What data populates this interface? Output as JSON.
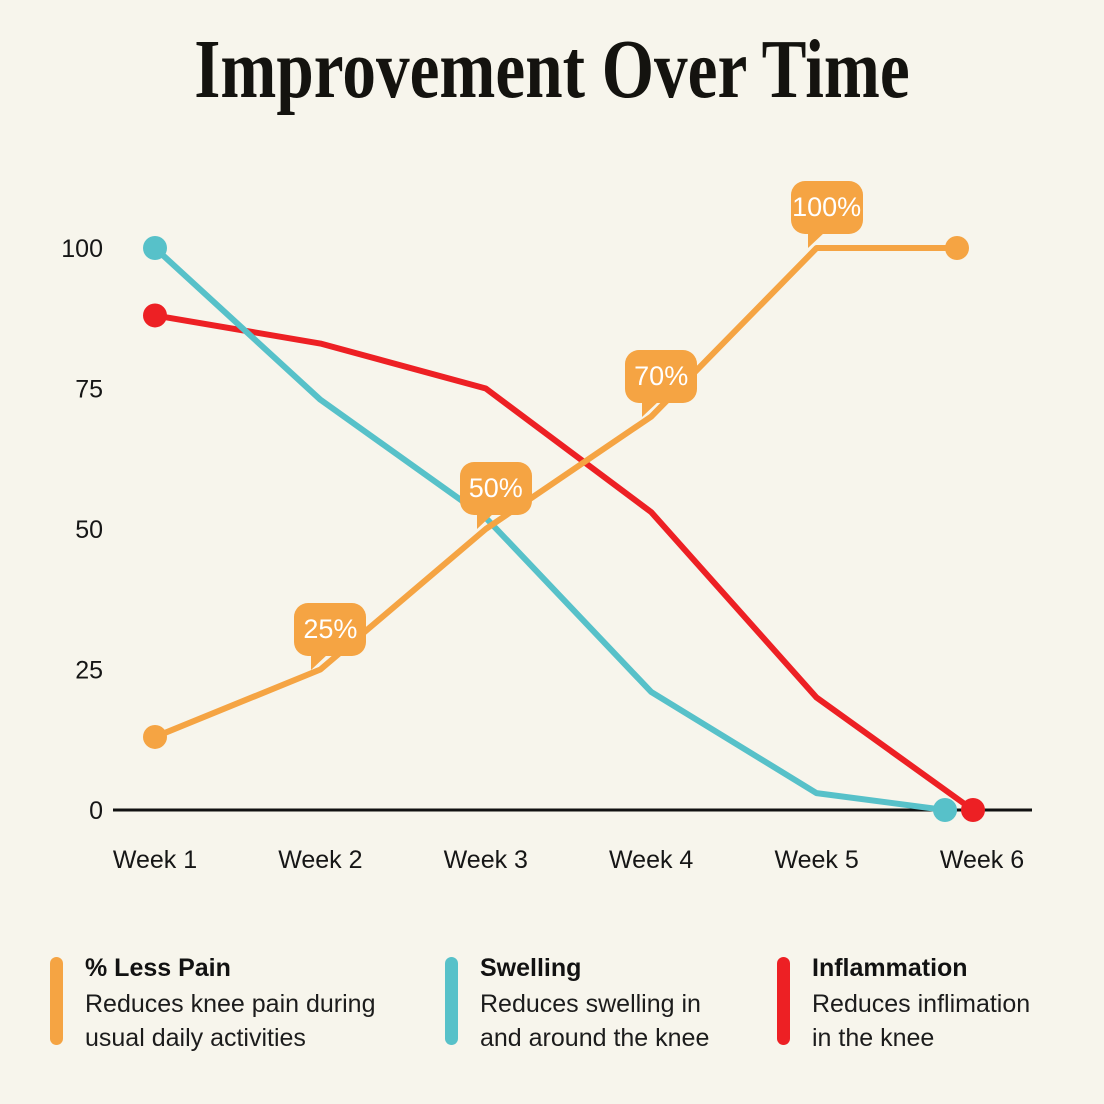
{
  "title": "Improvement Over Time",
  "colors": {
    "background": "#F7F5EC",
    "axis": "#111111",
    "tick_text": "#161616",
    "badge_text": "#FFFFFF",
    "orange": "#F5A443",
    "teal": "#57C1C9",
    "red": "#ED2024"
  },
  "chart_data": {
    "type": "line",
    "title": "Improvement Over Time",
    "categories": [
      "Week 1",
      "Week 2",
      "Week 3",
      "Week 4",
      "Week 5",
      "Week 6"
    ],
    "y_ticks": [
      100,
      75,
      50,
      25,
      0
    ],
    "ylim": [
      0,
      100
    ],
    "grid": false,
    "legend_position": "bottom",
    "series": [
      {
        "name": "% Less Pain",
        "color": "#F5A443",
        "values": [
          13,
          25,
          50,
          70,
          100,
          100
        ]
      },
      {
        "name": "Swelling",
        "color": "#57C1C9",
        "values": [
          100,
          73,
          52,
          21,
          3,
          0
        ]
      },
      {
        "name": "Inflammation",
        "color": "#ED2024",
        "values": [
          88,
          83,
          75,
          53,
          20,
          0
        ]
      }
    ],
    "data_labels": [
      {
        "series": "% Less Pain",
        "category": "Week 2",
        "label": "25%"
      },
      {
        "series": "% Less Pain",
        "category": "Week 3",
        "label": "50%"
      },
      {
        "series": "% Less Pain",
        "category": "Week 4",
        "label": "70%"
      },
      {
        "series": "% Less Pain",
        "category": "Week 5",
        "label": "100%"
      }
    ]
  },
  "legend": {
    "items": [
      {
        "heading": "% Less Pain",
        "color": "#F5A443",
        "lines": [
          "Reduces knee pain during",
          "usual daily activities"
        ]
      },
      {
        "heading": "Swelling",
        "color": "#57C1C9",
        "lines": [
          "Reduces swelling in",
          "and around the knee"
        ]
      },
      {
        "heading": "Inflammation",
        "color": "#ED2024",
        "lines": [
          "Reduces inflimation",
          "in the knee"
        ]
      }
    ]
  }
}
